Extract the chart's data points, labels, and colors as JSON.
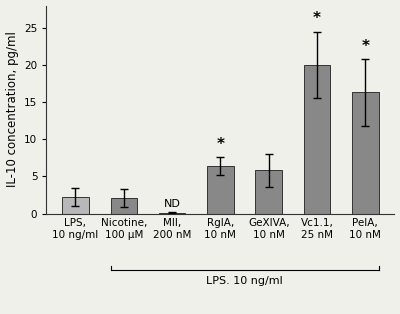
{
  "categories": [
    "LPS,\n10 ng/ml",
    "Nicotine,\n100 μM",
    "MII,\n200 nM",
    "RgIA,\n10 nM",
    "GeXIVA,\n10 nM",
    "Vc1.1,\n25 nM",
    "PelA,\n10 nM"
  ],
  "values": [
    2.2,
    2.1,
    0.1,
    6.4,
    5.8,
    20.0,
    16.3
  ],
  "errors": [
    1.2,
    1.2,
    0.05,
    1.2,
    2.2,
    4.5,
    4.5
  ],
  "bar_colors": [
    "#b8b8b8",
    "#888888",
    "#888888",
    "#888888",
    "#888888",
    "#888888",
    "#888888"
  ],
  "nd_label": "ND",
  "nd_bar_index": 2,
  "significance_indices": [
    3,
    5,
    6
  ],
  "ylabel": "IL-10 concentration, pg/ml",
  "xlabel_group": "LPS. 10 ng/ml",
  "xlabel_group_start": 1,
  "xlabel_group_end": 6,
  "ylim": [
    0,
    28
  ],
  "yticks": [
    0,
    5,
    10,
    15,
    20,
    25
  ],
  "bar_width": 0.55,
  "background_color": "#f0f0ea",
  "tick_fontsize": 7.5,
  "ylabel_fontsize": 8.5,
  "label_fontsize": 8
}
